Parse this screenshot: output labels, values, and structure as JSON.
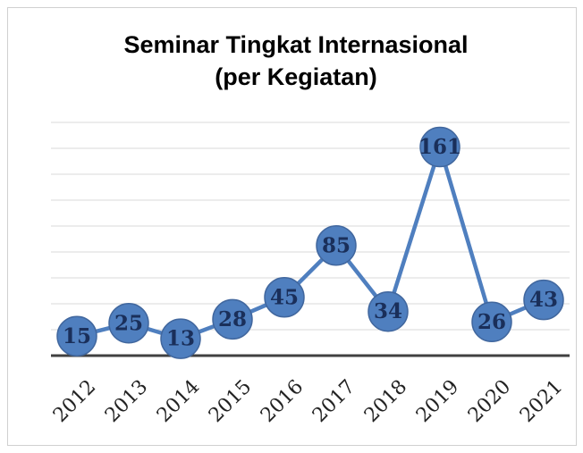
{
  "chart_data": {
    "type": "line",
    "title": [
      "Seminar Tingkat Internasional",
      "(per Kegiatan)"
    ],
    "categories": [
      "2012",
      "2013",
      "2014",
      "2015",
      "2016",
      "2017",
      "2018",
      "2019",
      "2020",
      "2021"
    ],
    "values": [
      15,
      25,
      13,
      28,
      45,
      85,
      34,
      161,
      26,
      43
    ],
    "color": "#4f7fbf",
    "ylim": [
      0,
      180
    ],
    "yticks": [
      0,
      20,
      40,
      60,
      80,
      100,
      120,
      140,
      160,
      180
    ],
    "grid": true
  }
}
